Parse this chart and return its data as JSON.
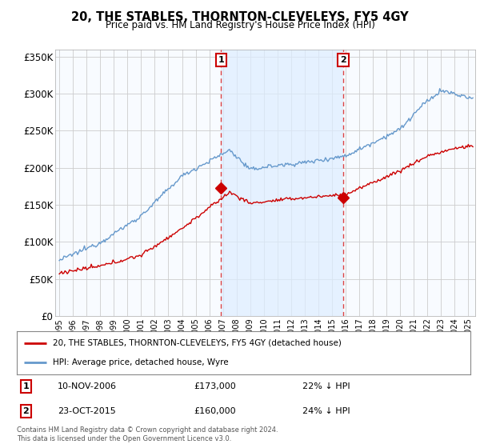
{
  "title": "20, THE STABLES, THORNTON-CLEVELEYS, FY5 4GY",
  "subtitle": "Price paid vs. HM Land Registry's House Price Index (HPI)",
  "ylim": [
    0,
    360000
  ],
  "yticks": [
    0,
    50000,
    100000,
    150000,
    200000,
    250000,
    300000,
    350000
  ],
  "ytick_labels": [
    "£0",
    "£50K",
    "£100K",
    "£150K",
    "£200K",
    "£250K",
    "£300K",
    "£350K"
  ],
  "sale1": {
    "date_num": 2006.87,
    "price": 173000,
    "label": "1",
    "date_str": "10-NOV-2006",
    "pct": "22%",
    "direction": "↓"
  },
  "sale2": {
    "date_num": 2015.82,
    "price": 160000,
    "label": "2",
    "date_str": "23-OCT-2015",
    "pct": "24%",
    "direction": "↓"
  },
  "hpi_color": "#6699cc",
  "sale_color": "#cc0000",
  "vline_color": "#dd4444",
  "shade_color": "#ddeeff",
  "legend_sale_label": "20, THE STABLES, THORNTON-CLEVELEYS, FY5 4GY (detached house)",
  "legend_hpi_label": "HPI: Average price, detached house, Wyre",
  "footer": "Contains HM Land Registry data © Crown copyright and database right 2024.\nThis data is licensed under the Open Government Licence v3.0.",
  "fig_bg": "#ffffff",
  "plot_bg": "#ffffff"
}
